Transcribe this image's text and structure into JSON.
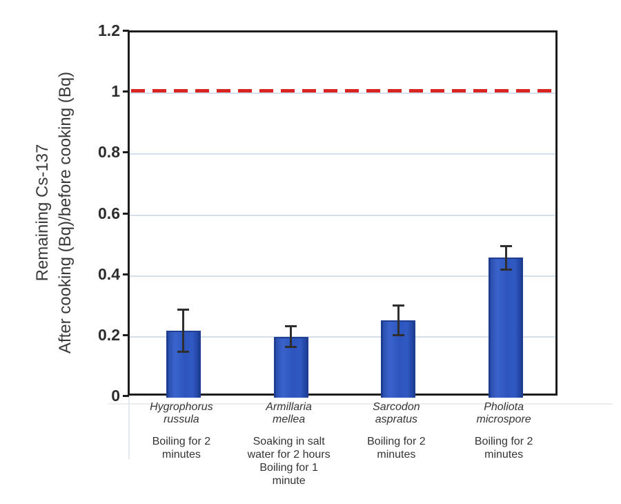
{
  "chart_data": {
    "type": "bar",
    "title": "",
    "xlabel": "",
    "ylabel_lines": [
      "Remaining Cs-137",
      "After cooking (Bq)/before cooking (Bq)"
    ],
    "ylim": [
      0,
      1.2
    ],
    "yticks": [
      0,
      0.2,
      0.4,
      0.6,
      0.8,
      1,
      1.2
    ],
    "ytick_labels": [
      "0",
      "0.2",
      "0.4",
      "0.6",
      "0.8",
      "1",
      "1.2"
    ],
    "grid": true,
    "gridline_values": [
      0.2,
      0.4,
      0.6,
      0.8,
      1.0
    ],
    "legend": "none",
    "reference_line": {
      "value": 1.0,
      "style": "dashed",
      "color": "#d62522"
    },
    "categories": [
      {
        "species": "Hygrophorus\nrussula",
        "method": "Boiling for 2\nminutes"
      },
      {
        "species": "Armillaria\nmellea",
        "method": "Soaking in salt\nwater for 2 hours\nBoiling for 1\nminute"
      },
      {
        "species": "Sarcodon\naspratus",
        "method": "Boiling for 2\nminutes"
      },
      {
        "species": "Pholiota\nmicrospore",
        "method": "Boiling for 2\nminutes"
      }
    ],
    "values": [
      0.22,
      0.2,
      0.255,
      0.46
    ],
    "error_bars": [
      0.07,
      0.035,
      0.05,
      0.04
    ],
    "colors": {
      "bar_fill": "#2e56bd",
      "bar_border": "#1e3e92",
      "error_bar": "#2e2e2e",
      "gridline": "#d3e1ee",
      "axis_frame": "#1c1c1c",
      "reference_red": "#d62522",
      "text": "#3a3a3a"
    }
  }
}
